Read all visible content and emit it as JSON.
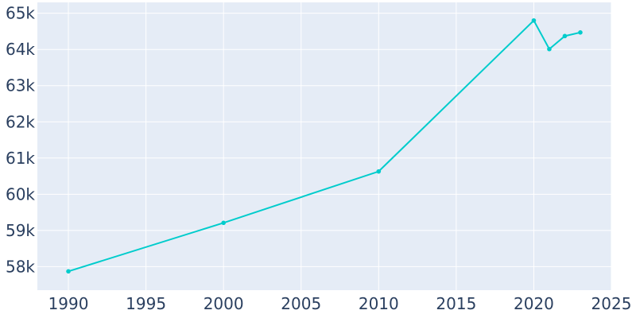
{
  "chart_data": {
    "type": "line",
    "title": "",
    "xlabel": "",
    "ylabel": "",
    "x": [
      1990,
      2000,
      2010,
      2020,
      2021,
      2022,
      2023
    ],
    "series": [
      {
        "values": [
          57870,
          59210,
          60630,
          64800,
          64010,
          64370,
          64470
        ]
      }
    ],
    "xlim": [
      1988,
      2025
    ],
    "ylim": [
      57350,
      65300
    ],
    "x_ticks": [
      1990,
      1995,
      2000,
      2005,
      2010,
      2015,
      2020,
      2025
    ],
    "x_tick_labels": [
      "1990",
      "1995",
      "2000",
      "2005",
      "2010",
      "2015",
      "2020",
      "2025"
    ],
    "y_ticks": [
      58000,
      59000,
      60000,
      61000,
      62000,
      63000,
      64000,
      65000
    ],
    "y_tick_labels": [
      "58k",
      "59k",
      "60k",
      "61k",
      "62k",
      "63k",
      "64k",
      "65k"
    ],
    "grid": true,
    "colors": {
      "line": "#00cccc",
      "plot_bg": "#e5ecf6",
      "grid": "#ffffff",
      "text": "#2a3f5f"
    }
  }
}
